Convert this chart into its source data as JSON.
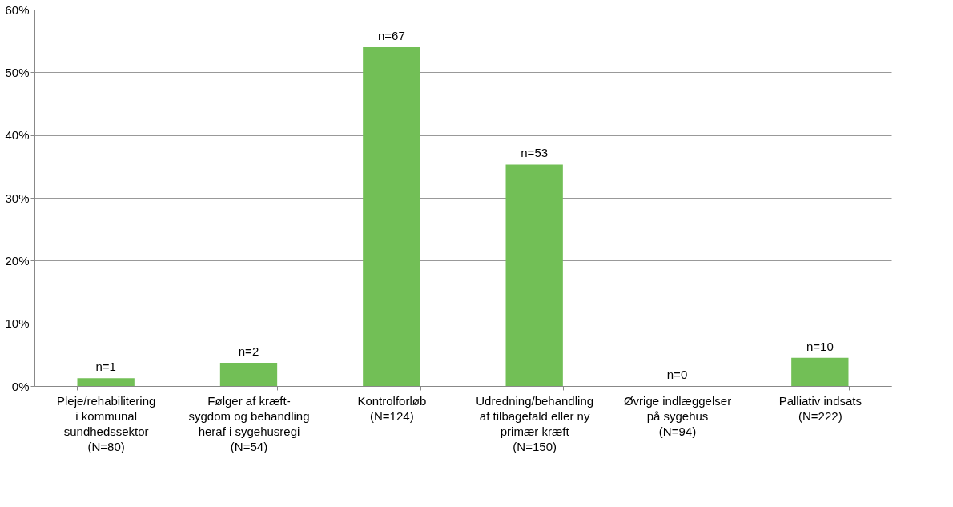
{
  "chart_data": {
    "type": "bar",
    "categories": [
      "Pleje/rehabilitering\ni kommunal\nsundhedssektor\n(N=80)",
      "Følger af kræft-\nsygdom og behandling\nheraf i sygehusregi\n(N=54)",
      "Kontrolforløb\n(N=124)",
      "Udredning/behandling\naf tilbagefald eller ny\nprimær kræft\n(N=150)",
      "Øvrige indlæggelser\npå sygehus\n(N=94)",
      "Palliativ indsats\n(N=222)"
    ],
    "values": [
      1.25,
      3.7,
      54.0,
      35.3,
      0,
      4.5
    ],
    "annotations": [
      {
        "text": "n=1",
        "x": "Pleje/rehabilitering\ni kommunal\nsundhedssektor\n(N=80)",
        "y": 1.25
      },
      {
        "text": "n=2",
        "x": "Følger af kræft-\nsygdom og behandling\nheraf i sygehusregi\n(N=54)",
        "y": 3.7
      },
      {
        "text": "n=67",
        "x": "Kontrolforløb\n(N=124)",
        "y": 54.0
      },
      {
        "text": "n=53",
        "x": "Udredning/behandling\naf tilbagefald eller ny\nprimær kræft\n(N=150)",
        "y": 35.3
      },
      {
        "text": "n=0",
        "x": "Øvrige indlæggelser\npå sygehus\n(N=94)",
        "y": 0
      },
      {
        "text": "n=10",
        "x": "Palliativ indsats\n(N=222)",
        "y": 4.5
      }
    ],
    "color": "#72bf56",
    "ylim": [
      0,
      60
    ],
    "yticks": [
      {
        "value": 0,
        "label": "0%"
      },
      {
        "value": 10,
        "label": "10%"
      },
      {
        "value": 20,
        "label": "20%"
      },
      {
        "value": 30,
        "label": "30%"
      },
      {
        "value": 40,
        "label": "40%"
      },
      {
        "value": 50,
        "label": "50%"
      },
      {
        "value": 60,
        "label": "60%"
      }
    ],
    "grid": "y"
  }
}
